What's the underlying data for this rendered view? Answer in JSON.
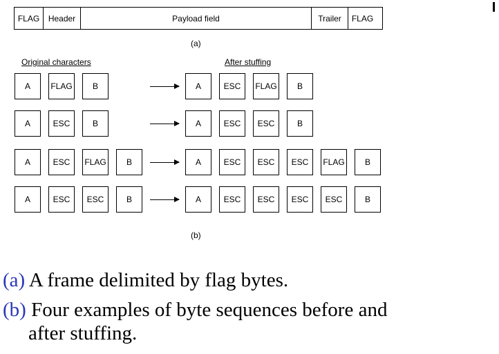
{
  "figure": {
    "frame": {
      "fields": [
        {
          "label": "FLAG",
          "width": 42
        },
        {
          "label": "Header",
          "width": 54
        },
        {
          "label": "Payload field",
          "width": 334
        },
        {
          "label": "Trailer",
          "width": 53
        },
        {
          "label": "FLAG",
          "width": 41
        }
      ],
      "sublabel": "(a)"
    },
    "original_label": "Original characters",
    "after_label": "After stuffing",
    "rows": [
      {
        "original": [
          "A",
          "FLAG",
          "B"
        ],
        "stuffed": [
          "A",
          "ESC",
          "FLAG",
          "B"
        ]
      },
      {
        "original": [
          "A",
          "ESC",
          "B"
        ],
        "stuffed": [
          "A",
          "ESC",
          "ESC",
          "B"
        ]
      },
      {
        "original": [
          "A",
          "ESC",
          "FLAG",
          "B"
        ],
        "stuffed": [
          "A",
          "ESC",
          "ESC",
          "ESC",
          "FLAG",
          "B"
        ]
      },
      {
        "original": [
          "A",
          "ESC",
          "ESC",
          "B"
        ],
        "stuffed": [
          "A",
          "ESC",
          "ESC",
          "ESC",
          "ESC",
          "B"
        ]
      }
    ],
    "sublabel_b": "(b)"
  },
  "captions": {
    "a_tag": "(a)",
    "a_text": " A frame delimited by flag bytes.",
    "b_tag": "(b)",
    "b_text_line1": " Four examples of byte sequences before and",
    "b_text_line2": "after stuffing."
  },
  "colors": {
    "caption_tag": "#2a36b8"
  }
}
